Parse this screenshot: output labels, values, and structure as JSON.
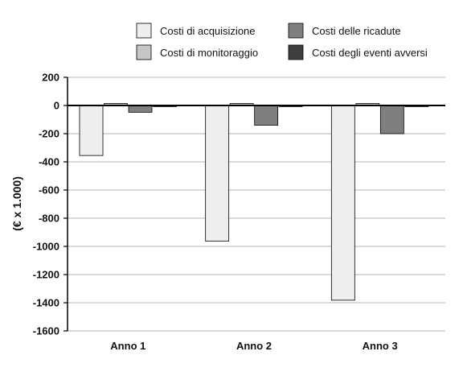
{
  "chart_data": {
    "type": "bar",
    "ylabel": "(€ x 1.000)",
    "ylim": [
      -1600,
      200
    ],
    "yticks": [
      200,
      0,
      -200,
      -400,
      -600,
      -800,
      -1000,
      -1200,
      -1400,
      -1600
    ],
    "grid": true,
    "legend_position": "top",
    "categories": [
      "Anno 1",
      "Anno 2",
      "Anno 3"
    ],
    "series": [
      {
        "name": "Costi di acquisizione",
        "color": "#eeeeee",
        "values": [
          -355,
          -962,
          -1382
        ]
      },
      {
        "name": "Costi di monitoraggio",
        "color": "#c6c6c6",
        "values": [
          14,
          14,
          14
        ]
      },
      {
        "name": "Costi delle ricadute",
        "color": "#7f7f7f",
        "values": [
          -48,
          -140,
          -200
        ]
      },
      {
        "name": "Costi degli eventi avversi",
        "color": "#3f3f3f",
        "values": [
          -8,
          -8,
          -8
        ]
      }
    ]
  },
  "legend_order": [
    0,
    2,
    1,
    3
  ]
}
